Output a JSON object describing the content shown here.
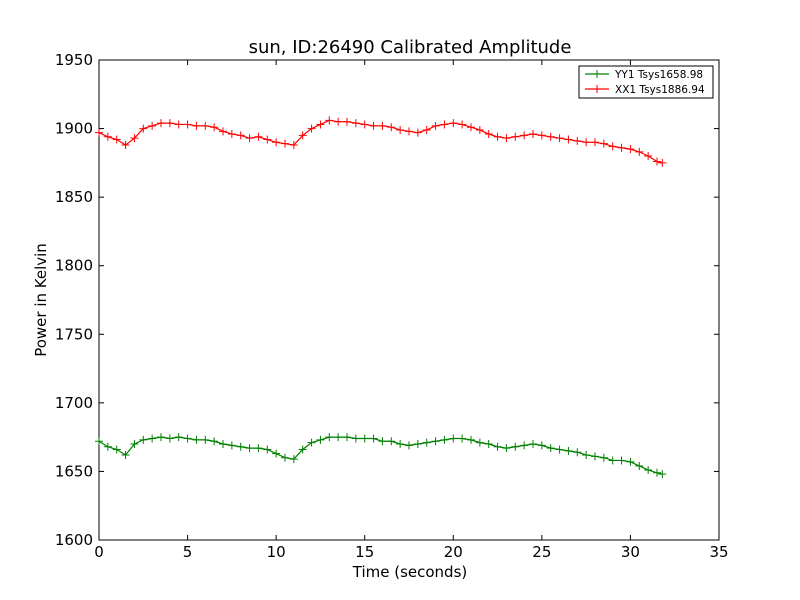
{
  "chart_data": {
    "type": "line",
    "title": "sun, ID:26490 Calibrated Amplitude",
    "xlabel": "Time (seconds)",
    "ylabel": "Power in Kelvin",
    "xlim": [
      0,
      35
    ],
    "ylim": [
      1600,
      1950
    ],
    "xticks": [
      "0",
      "5",
      "10",
      "15",
      "20",
      "25",
      "30",
      "35"
    ],
    "yticks": [
      "1600",
      "1650",
      "1700",
      "1750",
      "1800",
      "1850",
      "1900",
      "1950"
    ],
    "grid": false,
    "legend_position": "top-right",
    "marker": "+",
    "series": [
      {
        "name": "YY1 Tsys1658.98",
        "color": "#008000",
        "x": [
          0,
          0.5,
          1,
          1.5,
          2,
          2.5,
          3,
          3.5,
          4,
          4.5,
          5,
          5.5,
          6,
          6.5,
          7,
          7.5,
          8,
          8.5,
          9,
          9.5,
          10,
          10.5,
          11,
          11.5,
          12,
          12.5,
          13,
          13.5,
          14,
          14.5,
          15,
          15.5,
          16,
          16.5,
          17,
          17.5,
          18,
          18.5,
          19,
          19.5,
          20,
          20.5,
          21,
          21.5,
          22,
          22.5,
          23,
          23.5,
          24,
          24.5,
          25,
          25.5,
          26,
          26.5,
          27,
          27.5,
          28,
          28.5,
          29,
          29.5,
          30,
          30.5,
          31,
          31.5,
          31.8
        ],
        "y": [
          1672,
          1668,
          1666,
          1662,
          1670,
          1673,
          1674,
          1675,
          1674,
          1675,
          1674,
          1673,
          1673,
          1672,
          1670,
          1669,
          1668,
          1667,
          1667,
          1666,
          1663,
          1660,
          1659,
          1666,
          1671,
          1673,
          1675,
          1675,
          1675,
          1674,
          1674,
          1674,
          1672,
          1672,
          1670,
          1669,
          1670,
          1671,
          1672,
          1673,
          1674,
          1674,
          1673,
          1671,
          1670,
          1668,
          1667,
          1668,
          1669,
          1670,
          1669,
          1667,
          1666,
          1665,
          1664,
          1662,
          1661,
          1660,
          1658,
          1658,
          1657,
          1654,
          1651,
          1649,
          1648
        ]
      },
      {
        "name": "XX1 Tsys1886.94",
        "color": "#ff0000",
        "x": [
          0,
          0.5,
          1,
          1.5,
          2,
          2.5,
          3,
          3.5,
          4,
          4.5,
          5,
          5.5,
          6,
          6.5,
          7,
          7.5,
          8,
          8.5,
          9,
          9.5,
          10,
          10.5,
          11,
          11.5,
          12,
          12.5,
          13,
          13.5,
          14,
          14.5,
          15,
          15.5,
          16,
          16.5,
          17,
          17.5,
          18,
          18.5,
          19,
          19.5,
          20,
          20.5,
          21,
          21.5,
          22,
          22.5,
          23,
          23.5,
          24,
          24.5,
          25,
          25.5,
          26,
          26.5,
          27,
          27.5,
          28,
          28.5,
          29,
          29.5,
          30,
          30.5,
          31,
          31.5,
          31.8
        ],
        "y": [
          1897,
          1894,
          1892,
          1888,
          1893,
          1900,
          1902,
          1904,
          1904,
          1903,
          1903,
          1902,
          1902,
          1901,
          1898,
          1896,
          1895,
          1893,
          1894,
          1892,
          1890,
          1889,
          1888,
          1895,
          1900,
          1903,
          1906,
          1905,
          1905,
          1904,
          1903,
          1902,
          1902,
          1901,
          1899,
          1898,
          1897,
          1899,
          1902,
          1903,
          1904,
          1903,
          1901,
          1899,
          1896,
          1894,
          1893,
          1894,
          1895,
          1896,
          1895,
          1894,
          1893,
          1892,
          1891,
          1890,
          1890,
          1889,
          1887,
          1886,
          1885,
          1883,
          1880,
          1876,
          1875
        ]
      }
    ]
  }
}
